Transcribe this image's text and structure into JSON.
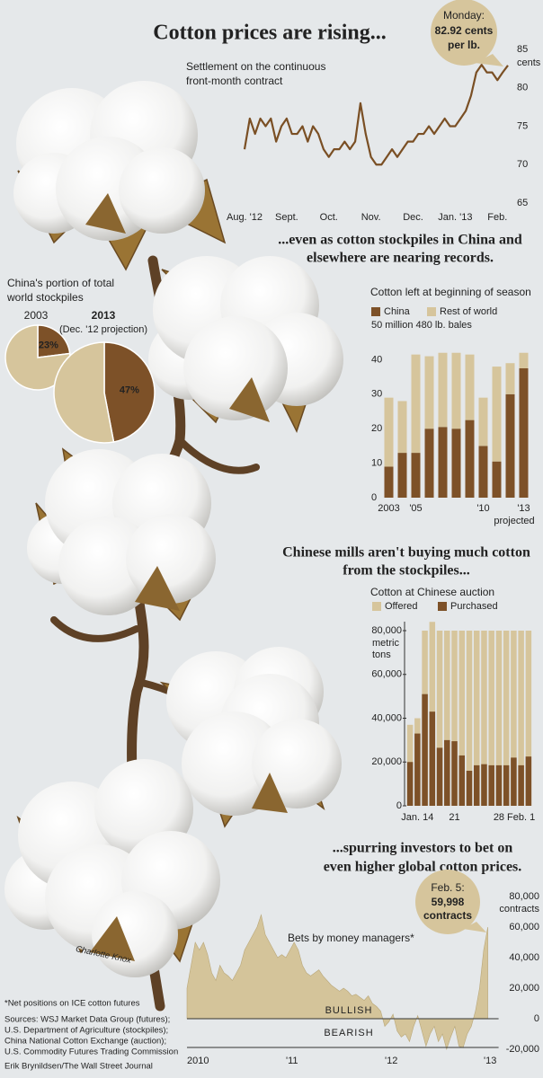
{
  "chart_data": [
    {
      "type": "line",
      "title": "Cotton prices are rising...",
      "subtitle": [
        "Settlement on the continuous",
        "front-month contract"
      ],
      "annotation": [
        "Monday:",
        "82.92 cents",
        "per lb."
      ],
      "y_unit": "cents",
      "color": "#7a4f24",
      "categories": [
        "Aug. '12",
        null,
        null,
        null,
        null,
        null,
        null,
        null,
        "Sept.",
        null,
        null,
        null,
        null,
        null,
        null,
        null,
        "Oct.",
        null,
        null,
        null,
        null,
        null,
        null,
        null,
        "Nov.",
        null,
        null,
        null,
        null,
        null,
        null,
        null,
        "Dec.",
        null,
        null,
        null,
        null,
        null,
        null,
        null,
        "Jan. '13",
        null,
        null,
        null,
        null,
        null,
        null,
        null,
        "Feb.",
        null,
        null
      ],
      "values": [
        72,
        76,
        74,
        76,
        75,
        76,
        73,
        75,
        76,
        74,
        74,
        75,
        73,
        75,
        74,
        72,
        71,
        72,
        72,
        73,
        72,
        73,
        78,
        74,
        71,
        70,
        70,
        71,
        72,
        71,
        72,
        73,
        73,
        74,
        74,
        75,
        74,
        75,
        76,
        75,
        75,
        76,
        77,
        79,
        82,
        83,
        82,
        82,
        81,
        82,
        82.92
      ],
      "ylim": [
        65,
        85
      ],
      "yticks": [
        65,
        70,
        75,
        80,
        85
      ]
    },
    {
      "type": "pie",
      "title": [
        "China's portion of total",
        "world stockpiles"
      ],
      "colors": [
        "#7d5128",
        "#d6c59c"
      ],
      "pies": [
        {
          "label": "2003",
          "values": [
            23,
            77
          ],
          "value_labels": [
            "23%",
            null
          ]
        },
        {
          "label": "2013",
          "note": "(Dec. '12 projection)",
          "values": [
            47,
            53
          ],
          "value_labels": [
            "47%",
            null
          ]
        }
      ]
    },
    {
      "type": "stacked_bar",
      "title": [
        "...even as cotton stockpiles in China and",
        "elsewhere are nearing records."
      ],
      "subtitle": "Cotton left at beginning of season",
      "note": "projected",
      "categories": [
        "2003",
        null,
        "'05",
        null,
        null,
        null,
        null,
        "'10",
        null,
        null,
        "'13"
      ],
      "series": [
        {
          "name": "China",
          "color": "#7d5128",
          "values": [
            9,
            13,
            13,
            20,
            20.5,
            20,
            22.5,
            15,
            10.5,
            30,
            37.5
          ]
        },
        {
          "name": "Rest of world",
          "color": "#d6c59c",
          "values": [
            20,
            15,
            28.5,
            21,
            21.5,
            22,
            19,
            14,
            27.5,
            9,
            4.5
          ]
        }
      ],
      "ylim": [
        0,
        50
      ],
      "yticks": [
        0,
        10,
        20,
        30,
        40,
        {
          "value": 50,
          "label": "50 million 480 lb. bales"
        }
      ]
    },
    {
      "type": "overlap_bar",
      "title": [
        "Chinese mills aren't buying much cotton",
        "from the stockpiles..."
      ],
      "subtitle": "Cotton at Chinese auction",
      "y_unit": [
        "metric",
        "tons"
      ],
      "categories": [
        null,
        "Jan. 14",
        null,
        null,
        null,
        null,
        "21",
        null,
        null,
        null,
        null,
        null,
        "28",
        null,
        null,
        "Feb. 1",
        null
      ],
      "series": [
        {
          "name": "Offered",
          "color": "#d6c59c",
          "values": [
            37000,
            40000,
            80000,
            84000,
            80000,
            80000,
            80000,
            80000,
            80000,
            80000,
            80000,
            80000,
            80000,
            80000,
            80000,
            80000,
            80000
          ]
        },
        {
          "name": "Purchased",
          "color": "#7d5128",
          "values": [
            20000,
            33000,
            51000,
            43000,
            26500,
            30000,
            29500,
            23000,
            16000,
            18500,
            19000,
            18500,
            18500,
            18500,
            22000,
            18500,
            22500
          ]
        }
      ],
      "ylim": [
        0,
        80000
      ],
      "yticks": [
        0,
        {
          "value": 20000,
          "label": "20,000"
        },
        {
          "value": 40000,
          "label": "40,000"
        },
        {
          "value": 60000,
          "label": "60,000"
        },
        {
          "value": 80000,
          "label": "80,000"
        }
      ]
    },
    {
      "type": "area",
      "title": [
        "...spurring investors to bet on",
        "even higher global cotton prices."
      ],
      "subtitle": "Bets by money managers*",
      "annotation": [
        "Feb. 5:",
        "59,998",
        "contracts"
      ],
      "y_unit": "contracts",
      "labels": [
        "BULLISH",
        "BEARISH"
      ],
      "color": "#d4c49a",
      "categories": [
        "2010",
        null,
        null,
        null,
        null,
        null,
        null,
        null,
        null,
        null,
        null,
        null,
        null,
        null,
        null,
        null,
        null,
        null,
        null,
        null,
        null,
        null,
        null,
        null,
        "'11",
        null,
        null,
        null,
        null,
        null,
        null,
        null,
        null,
        null,
        null,
        null,
        null,
        null,
        null,
        null,
        null,
        null,
        null,
        null,
        null,
        null,
        null,
        null,
        "'12",
        null,
        null,
        null,
        null,
        null,
        null,
        null,
        null,
        null,
        null,
        null,
        null,
        null,
        null,
        null,
        null,
        null,
        null,
        null,
        null,
        null,
        null,
        null,
        "'13",
        null
      ],
      "values": [
        20000,
        35000,
        50000,
        45000,
        50000,
        42000,
        30000,
        25000,
        35000,
        30000,
        28000,
        25000,
        30000,
        35000,
        45000,
        50000,
        55000,
        60000,
        68000,
        55000,
        50000,
        45000,
        40000,
        42000,
        40000,
        45000,
        50000,
        45000,
        35000,
        30000,
        28000,
        30000,
        32000,
        28000,
        25000,
        22000,
        20000,
        18000,
        20000,
        18000,
        15000,
        16000,
        14000,
        12000,
        15000,
        10000,
        8000,
        5000,
        -5000,
        -2000,
        3000,
        -8000,
        -12000,
        -10000,
        -15000,
        -5000,
        2000,
        -8000,
        -18000,
        -10000,
        -5000,
        -15000,
        -10000,
        -20000,
        -12000,
        -5000,
        -18000,
        -19000,
        -10000,
        -5000,
        5000,
        20000,
        45000,
        59998
      ],
      "ylim": [
        -20000,
        80000
      ],
      "yticks": [
        {
          "value": -20000,
          "label": "-20,000"
        },
        0,
        {
          "value": 20000,
          "label": "20,000"
        },
        {
          "value": 40000,
          "label": "40,000"
        },
        {
          "value": 60000,
          "label": "60,000"
        },
        {
          "value": 80000,
          "label": "80,000"
        }
      ]
    }
  ],
  "notes": {
    "footnote": "*Net positions on ICE cotton futures",
    "sources": [
      "Sources: WSJ Market Data Group (futures);",
      "U.S. Department of Agriculture (stockpiles);",
      "China National Cotton Exchange (auction);",
      "U.S. Commodity Futures Trading Commission"
    ],
    "credit": "Erik Brynildsen/The Wall Street Journal",
    "illustration_credit": "Charlotte Knox"
  }
}
